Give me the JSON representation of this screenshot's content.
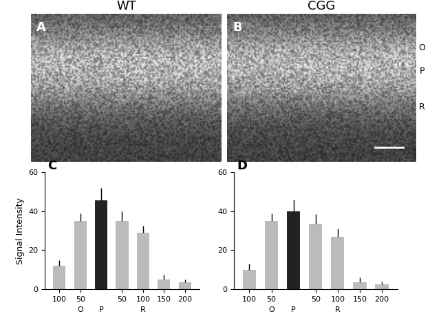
{
  "images": [
    {
      "label": "A",
      "title": "WT"
    },
    {
      "label": "B",
      "title": "CGG",
      "layer_labels": [
        "O",
        "P",
        "R"
      ]
    }
  ],
  "chart_data": [
    {
      "type": "bar",
      "title": "C",
      "y_label": "Signal Intensity",
      "categories": [
        "100",
        "50",
        null,
        "50",
        "100",
        "150",
        "200"
      ],
      "sub_labels": [
        null,
        "O",
        "P",
        null,
        "R",
        null,
        null
      ],
      "values": [
        12,
        35,
        45.5,
        35,
        29,
        5,
        3.5
      ],
      "errors": [
        3,
        4,
        6.5,
        5,
        3.5,
        2.5,
        1.5
      ],
      "colors": [
        "#bbbbbb",
        "#bbbbbb",
        "#222222",
        "#bbbbbb",
        "#bbbbbb",
        "#bbbbbb",
        "#bbbbbb"
      ],
      "ylim": [
        0,
        60
      ],
      "yticks": [
        0,
        20,
        40,
        60
      ]
    },
    {
      "type": "bar",
      "title": "D",
      "categories": [
        "100",
        "50",
        null,
        "50",
        "100",
        "150",
        "200"
      ],
      "sub_labels": [
        null,
        "O",
        "P",
        null,
        "R",
        null,
        null
      ],
      "values": [
        10,
        35,
        40,
        33.5,
        27,
        3.5,
        2.5
      ],
      "errors": [
        3,
        4,
        6,
        5,
        4,
        2.5,
        1.5
      ],
      "colors": [
        "#bbbbbb",
        "#bbbbbb",
        "#222222",
        "#bbbbbb",
        "#bbbbbb",
        "#bbbbbb",
        "#bbbbbb"
      ],
      "ylim": [
        0,
        60
      ],
      "yticks": [
        0,
        20,
        40,
        60
      ]
    }
  ]
}
